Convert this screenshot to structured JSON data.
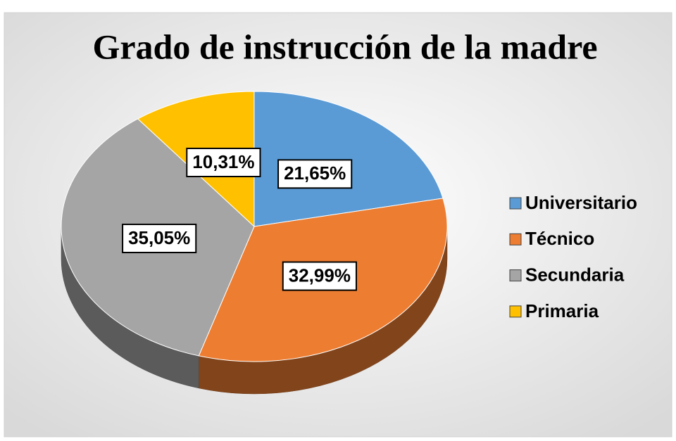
{
  "chart_data": {
    "type": "pie",
    "title": "Grado de instrucción de la madre",
    "categories": [
      "Universitario",
      "Técnico",
      "Secundaria",
      "Primaria"
    ],
    "values": [
      21.65,
      32.99,
      35.05,
      10.31
    ],
    "value_labels": [
      "21,65%",
      "32,99%",
      "35,05%",
      "10,31%"
    ],
    "colors": [
      "#5b9bd5",
      "#ed7d31",
      "#a5a5a5",
      "#ffc000"
    ],
    "legend": "right"
  }
}
